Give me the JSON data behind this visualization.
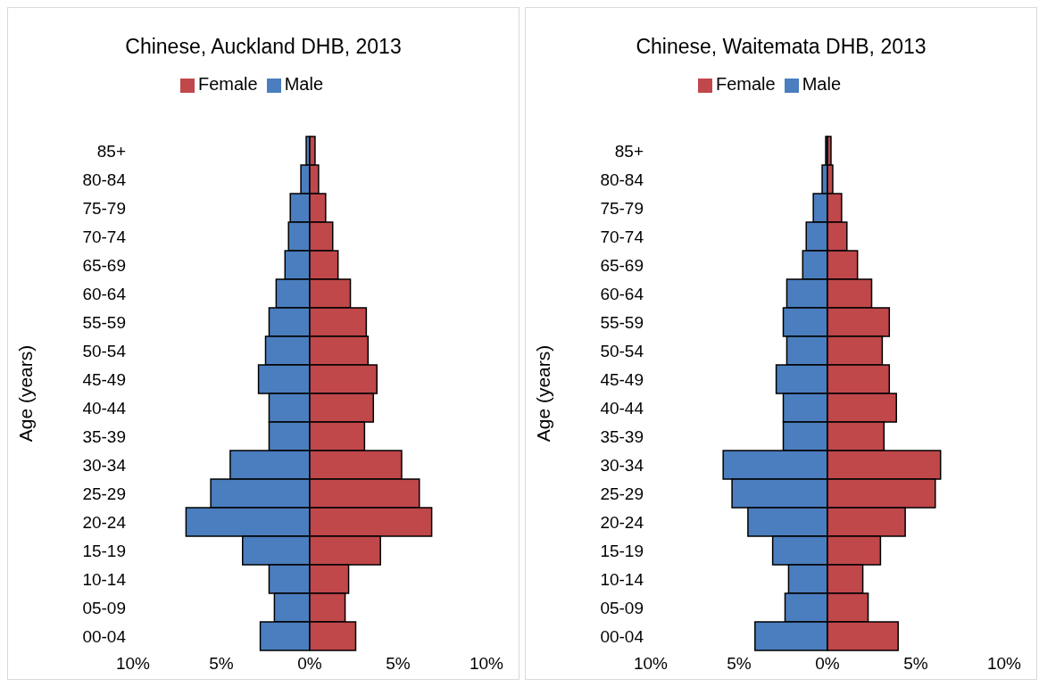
{
  "chart_data": [
    {
      "type": "bar",
      "title": "Chinese, Auckland DHB, 2013",
      "ylabel": "Age (years)",
      "orientation": "horizontal",
      "stacked": true,
      "legend": "top",
      "grid": false,
      "categories": [
        "85+",
        "80-84",
        "75-79",
        "70-74",
        "65-69",
        "60-64",
        "55-59",
        "50-54",
        "45-49",
        "40-44",
        "35-39",
        "30-34",
        "25-29",
        "20-24",
        "15-19",
        "10-14",
        "05-09",
        "00-04"
      ],
      "series": [
        {
          "name": "Male",
          "color": "#4a7ebe",
          "values": [
            -0.2,
            -0.5,
            -1.1,
            -1.2,
            -1.4,
            -1.9,
            -2.3,
            -2.5,
            -2.9,
            -2.3,
            -2.3,
            -4.5,
            -5.6,
            -7.0,
            -3.8,
            -2.3,
            -2.0,
            -2.8
          ]
        },
        {
          "name": "Female",
          "color": "#c0474a",
          "values": [
            0.3,
            0.5,
            0.9,
            1.3,
            1.6,
            2.3,
            3.2,
            3.3,
            3.8,
            3.6,
            3.1,
            5.2,
            6.2,
            6.9,
            4.0,
            2.2,
            2.0,
            2.6
          ]
        }
      ],
      "xlim": [
        -10,
        10
      ],
      "xticks": [
        {
          "value": -10,
          "label": "10%"
        },
        {
          "value": -5,
          "label": "5%"
        },
        {
          "value": 0,
          "label": "0%"
        },
        {
          "value": 5,
          "label": "5%"
        },
        {
          "value": 10,
          "label": "10%"
        }
      ]
    },
    {
      "type": "bar",
      "title": "Chinese, Waitemata DHB, 2013",
      "ylabel": "Age (years)",
      "orientation": "horizontal",
      "stacked": true,
      "legend": "top",
      "grid": false,
      "categories": [
        "85+",
        "80-84",
        "75-79",
        "70-74",
        "65-69",
        "60-64",
        "55-59",
        "50-54",
        "45-49",
        "40-44",
        "35-39",
        "30-34",
        "25-29",
        "20-24",
        "15-19",
        "10-14",
        "05-09",
        "00-04"
      ],
      "series": [
        {
          "name": "Male",
          "color": "#4a7ebe",
          "values": [
            -0.1,
            -0.3,
            -0.8,
            -1.2,
            -1.4,
            -2.3,
            -2.5,
            -2.3,
            -2.9,
            -2.5,
            -2.5,
            -5.9,
            -5.4,
            -4.5,
            -3.1,
            -2.2,
            -2.4,
            -4.1
          ]
        },
        {
          "name": "Female",
          "color": "#c0474a",
          "values": [
            0.2,
            0.3,
            0.8,
            1.1,
            1.7,
            2.5,
            3.5,
            3.1,
            3.5,
            3.9,
            3.2,
            6.4,
            6.1,
            4.4,
            3.0,
            2.0,
            2.3,
            4.0
          ]
        }
      ],
      "xlim": [
        -10,
        10
      ],
      "xticks": [
        {
          "value": -10,
          "label": "10%"
        },
        {
          "value": -5,
          "label": "5%"
        },
        {
          "value": 0,
          "label": "0%"
        },
        {
          "value": 5,
          "label": "5%"
        },
        {
          "value": 10,
          "label": "10%"
        }
      ]
    }
  ]
}
